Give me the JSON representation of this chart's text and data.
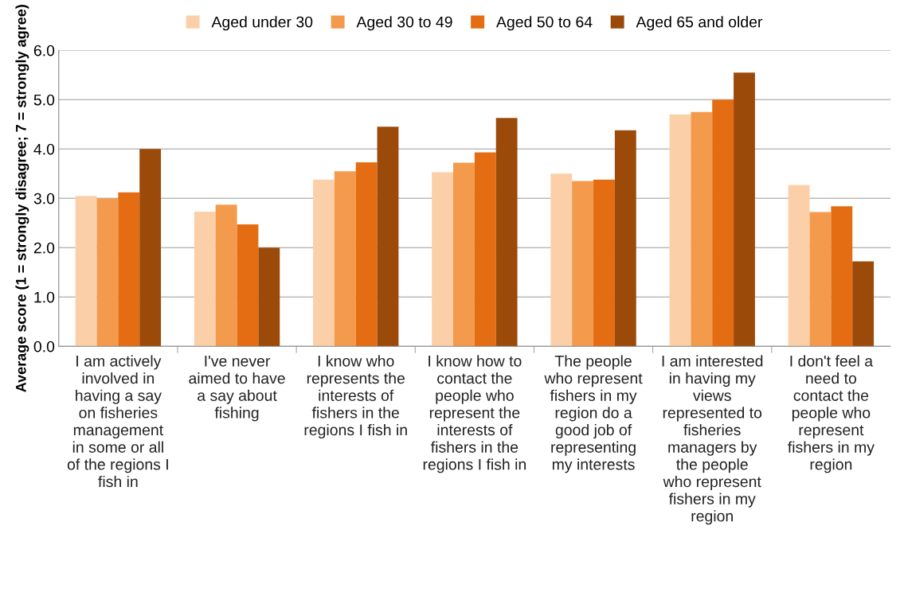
{
  "chart_data": {
    "type": "bar",
    "ylabel": "Average score (1 = strongly disagree; 7 = strongly agree)",
    "categories": [
      "I am actively\ninvolved in\nhaving a say\non fisheries\nmanagement\nin some or all\nof the regions I\nfish in",
      "I've never\naimed to have\na say about\nfishing",
      "I know who\nrepresents the\ninterests of\nfishers in the\nregions I fish in",
      "I know how to\ncontact the\npeople who\nrepresent the\ninterests of\nfishers in the\nregions I fish in",
      "The people\nwho represent\nfishers in my\nregion do a\ngood job of\nrepresenting\nmy interests",
      "I am interested\nin having my\nviews\nrepresented to\nfisheries\nmanagers by\nthe people\nwho represent\nfishers in my\nregion",
      "I don't feel a\nneed to\ncontact the\npeople who\nrepresent\nfishers in my\nregion"
    ],
    "series": [
      {
        "name": "Aged under 30",
        "color": "#fbd0a8",
        "values": [
          3.05,
          2.73,
          3.38,
          3.53,
          3.5,
          4.7,
          3.27
        ]
      },
      {
        "name": "Aged 30 to 49",
        "color": "#f39a4c",
        "values": [
          3.0,
          2.87,
          3.55,
          3.72,
          3.35,
          4.75,
          2.72
        ]
      },
      {
        "name": "Aged 50 to 64",
        "color": "#e46c12",
        "values": [
          3.12,
          2.47,
          3.73,
          3.93,
          3.38,
          5.0,
          2.84
        ]
      },
      {
        "name": "Aged 65 and older",
        "color": "#9c4a0a",
        "values": [
          4.0,
          2.0,
          4.45,
          4.63,
          4.38,
          5.55,
          1.72
        ]
      }
    ],
    "ylim": [
      0,
      6
    ],
    "yticks": [
      {
        "value": 0,
        "label": "0.0"
      },
      {
        "value": 1,
        "label": "1.0"
      },
      {
        "value": 2,
        "label": "2.0"
      },
      {
        "value": 3,
        "label": "3.0"
      },
      {
        "value": 4,
        "label": "4.0"
      },
      {
        "value": 5,
        "label": "5.0"
      },
      {
        "value": 6,
        "label": "6.0"
      }
    ],
    "grid": "y",
    "legend": "top"
  }
}
